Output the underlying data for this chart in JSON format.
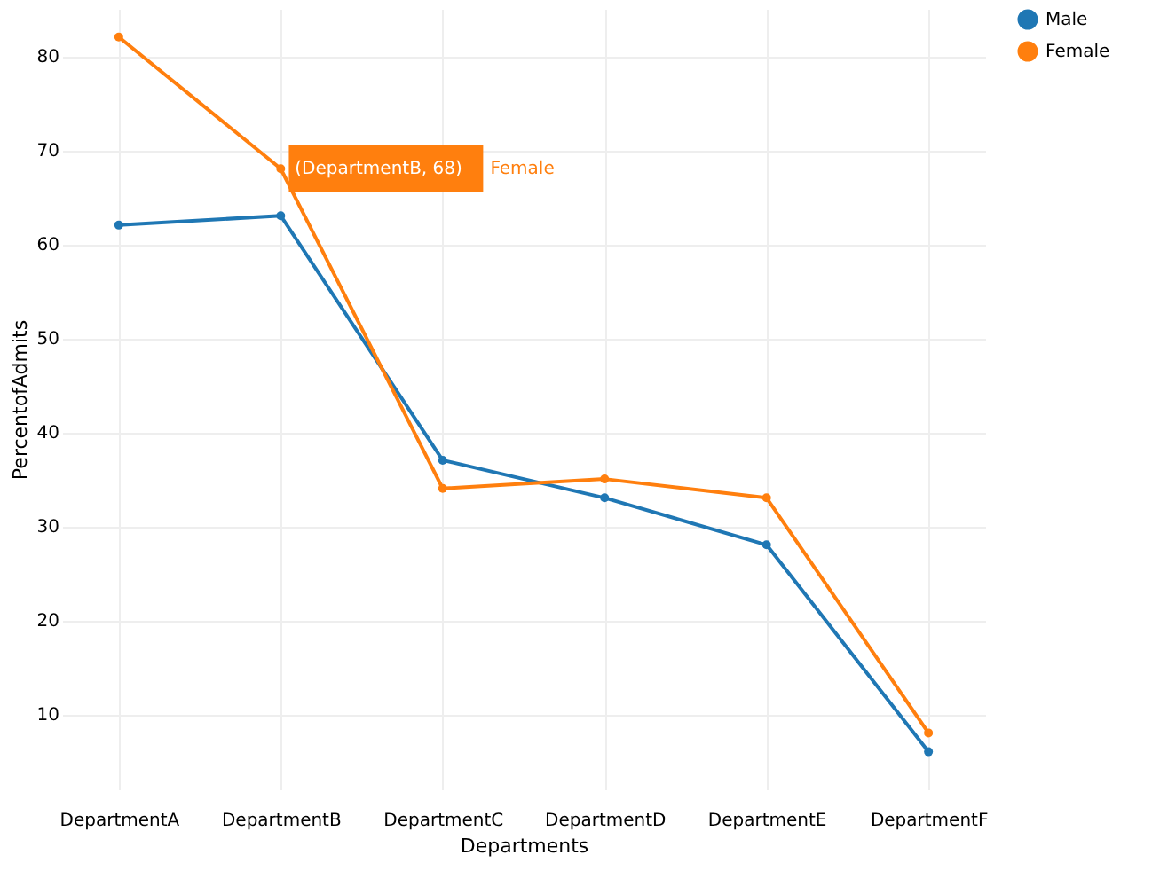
{
  "chart_data": {
    "type": "line",
    "xlabel": "Departments",
    "ylabel": "PercentofAdmits",
    "categories": [
      "DepartmentA",
      "DepartmentB",
      "DepartmentC",
      "DepartmentD",
      "DepartmentE",
      "DepartmentF"
    ],
    "series": [
      {
        "name": "Male",
        "color": "#1f77b4",
        "values": [
          62,
          63,
          37,
          33,
          28,
          6
        ]
      },
      {
        "name": "Female",
        "color": "#ff7f0e",
        "values": [
          82,
          68,
          34,
          35,
          33,
          8
        ]
      }
    ],
    "ylim": [
      2,
      85
    ],
    "yticks": [
      10,
      20,
      30,
      40,
      50,
      60,
      70,
      80
    ],
    "grid": true,
    "legend": "top right",
    "marker": "circle",
    "line_style": "solid",
    "annotations": [
      {
        "text": "(DepartmentB, 68)",
        "x": "DepartmentB",
        "y": 68
      },
      "Female"
    ]
  }
}
